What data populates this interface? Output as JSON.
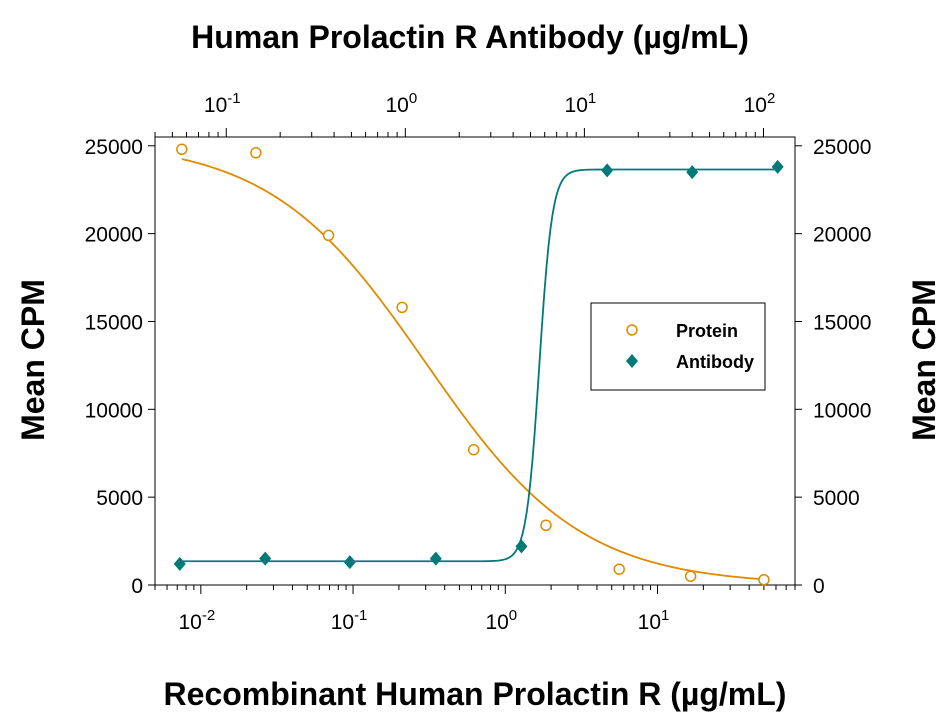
{
  "chart_data": {
    "type": "scatter",
    "title": "Human Prolactin R Antibody (µg/mL)",
    "xlabel": "Recombinant Human Prolactin R  (µg/mL)",
    "ylabel": "Mean CPM",
    "ylabel_right": "Mean CPM",
    "x_scale": "log",
    "x_bottom_range": [
      0.005,
      80
    ],
    "x_bottom_ticks": [
      {
        "base": "10",
        "exp": "-2",
        "value": 0.01
      },
      {
        "base": "10",
        "exp": "-1",
        "value": 0.1
      },
      {
        "base": "10",
        "exp": "0",
        "value": 1
      },
      {
        "base": "10",
        "exp": "1",
        "value": 10
      }
    ],
    "x_top_range": [
      0.04,
      150
    ],
    "x_top_ticks": [
      {
        "base": "10",
        "exp": "-1",
        "value": 0.1
      },
      {
        "base": "10",
        "exp": "0",
        "value": 1
      },
      {
        "base": "10",
        "exp": "1",
        "value": 10
      },
      {
        "base": "10",
        "exp": "2",
        "value": 100
      }
    ],
    "ylim": [
      0,
      25500
    ],
    "y_ticks": [
      "0",
      "5000",
      "10000",
      "15000",
      "20000",
      "25000"
    ],
    "y_tick_values": [
      0,
      5000,
      10000,
      15000,
      20000,
      25000
    ],
    "grid": false,
    "legend_position": "right-center",
    "series": [
      {
        "name": "Protein",
        "marker": "open-circle",
        "color": "#E08A00",
        "x_axis": "bottom",
        "points": [
          {
            "x": 0.0075,
            "y": 24800
          },
          {
            "x": 0.023,
            "y": 24600
          },
          {
            "x": 0.069,
            "y": 19900
          },
          {
            "x": 0.21,
            "y": 15800
          },
          {
            "x": 0.62,
            "y": 7700
          },
          {
            "x": 1.85,
            "y": 3400
          },
          {
            "x": 5.6,
            "y": 900
          },
          {
            "x": 16.5,
            "y": 500
          },
          {
            "x": 50,
            "y": 300
          }
        ],
        "fit": {
          "bottom": 0,
          "top": 25300,
          "ic50": 0.3,
          "hill": 0.85
        }
      },
      {
        "name": "Antibody",
        "marker": "filled-diamond",
        "color": "#007A78",
        "x_axis": "top",
        "points": [
          {
            "x": 0.055,
            "y": 1200
          },
          {
            "x": 0.165,
            "y": 1500
          },
          {
            "x": 0.49,
            "y": 1300
          },
          {
            "x": 1.48,
            "y": 1500
          },
          {
            "x": 4.45,
            "y": 2200
          },
          {
            "x": 13.4,
            "y": 23600
          },
          {
            "x": 40,
            "y": 23500
          },
          {
            "x": 120,
            "y": 23800
          }
        ],
        "fit": {
          "bottom": 1350,
          "top": 23650,
          "ic50": 5.6,
          "hill": 12
        }
      }
    ]
  }
}
